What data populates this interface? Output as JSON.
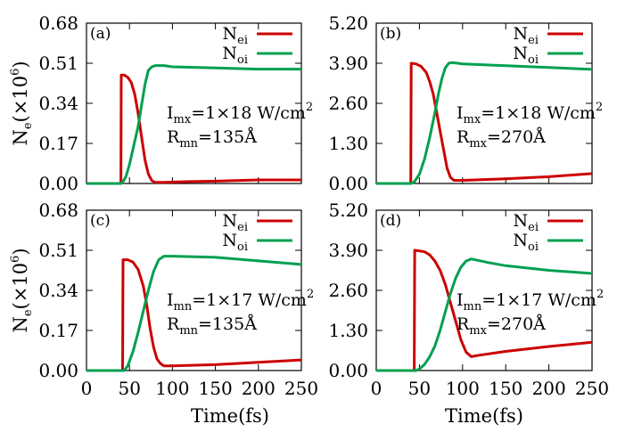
{
  "colors": {
    "ei": "#cc0000",
    "oi": "#00a050",
    "axis": "#000000"
  },
  "xlabel": "Time(fs)",
  "ylabel": {
    "main": "N",
    "sub": "e",
    "rest": "(×10",
    "sup": "6",
    "close": ")"
  },
  "chart_data": [
    {
      "type": "line",
      "panel": "(a)",
      "annotation": [
        {
          "main": "I",
          "sub": "mx",
          "rest": "=1×18 W/cm",
          "sup": "2"
        },
        {
          "main": "R",
          "sub": "mn",
          "rest": "=135Å",
          "sup": ""
        }
      ],
      "xlim": [
        0,
        250
      ],
      "ylim": [
        0,
        0.68
      ],
      "xticks": [
        0,
        50,
        100,
        150,
        200,
        250
      ],
      "yticks": [
        "0.00",
        "0.17",
        "0.34",
        "0.51",
        "0.68"
      ],
      "legend_position": "top-right",
      "grid": false,
      "series": [
        {
          "name": "N_ei",
          "label_main": "N",
          "label_sub": "ei",
          "color": "#cc0000",
          "x": [
            0,
            40,
            40.5,
            44,
            48,
            52,
            56,
            60,
            64,
            68,
            72,
            76,
            80,
            90,
            100,
            120,
            150,
            200,
            250
          ],
          "y": [
            0,
            0,
            0.46,
            0.46,
            0.45,
            0.43,
            0.38,
            0.3,
            0.2,
            0.1,
            0.04,
            0.012,
            0.005,
            0.005,
            0.006,
            0.008,
            0.01,
            0.015,
            0.015
          ]
        },
        {
          "name": "N_oi",
          "label_main": "N",
          "label_sub": "oi",
          "color": "#00a050",
          "x": [
            0,
            40,
            42,
            46,
            50,
            55,
            60,
            64,
            68,
            72,
            76,
            80,
            90,
            100,
            150,
            200,
            250
          ],
          "y": [
            0,
            0,
            0.005,
            0.03,
            0.08,
            0.16,
            0.24,
            0.33,
            0.42,
            0.48,
            0.495,
            0.5,
            0.5,
            0.495,
            0.49,
            0.485,
            0.485
          ]
        }
      ]
    },
    {
      "type": "line",
      "panel": "(b)",
      "annotation": [
        {
          "main": "I",
          "sub": "mx",
          "rest": "=1×18 W/cm",
          "sup": "2"
        },
        {
          "main": "R",
          "sub": "mx",
          "rest": "=270Å",
          "sup": ""
        }
      ],
      "xlim": [
        0,
        250
      ],
      "ylim": [
        0,
        5.2
      ],
      "xticks": [
        0,
        50,
        100,
        150,
        200,
        250
      ],
      "yticks": [
        "0.00",
        "1.30",
        "2.60",
        "3.90",
        "5.20"
      ],
      "legend_position": "top-right",
      "grid": false,
      "series": [
        {
          "name": "N_ei",
          "label_main": "N",
          "label_sub": "ei",
          "color": "#cc0000",
          "x": [
            0,
            40,
            40.5,
            46,
            52,
            58,
            62,
            66,
            70,
            74,
            78,
            82,
            86,
            90,
            100,
            150,
            200,
            250
          ],
          "y": [
            0,
            0,
            3.9,
            3.88,
            3.8,
            3.6,
            3.3,
            2.9,
            2.3,
            1.7,
            1.1,
            0.5,
            0.2,
            0.1,
            0.1,
            0.15,
            0.22,
            0.32
          ]
        },
        {
          "name": "N_oi",
          "label_main": "N",
          "label_sub": "oi",
          "color": "#00a050",
          "x": [
            0,
            40,
            44,
            50,
            56,
            62,
            68,
            72,
            76,
            80,
            84,
            88,
            100,
            150,
            200,
            250
          ],
          "y": [
            0,
            0,
            0.05,
            0.3,
            0.8,
            1.5,
            2.3,
            2.9,
            3.4,
            3.75,
            3.9,
            3.92,
            3.88,
            3.82,
            3.76,
            3.7
          ]
        }
      ]
    },
    {
      "type": "line",
      "panel": "(c)",
      "annotation": [
        {
          "main": "I",
          "sub": "mn",
          "rest": "=1×17 W/cm",
          "sup": "2"
        },
        {
          "main": "R",
          "sub": "mn",
          "rest": "=135Å",
          "sup": ""
        }
      ],
      "xlim": [
        0,
        250
      ],
      "ylim": [
        0,
        0.68
      ],
      "xticks": [
        0,
        50,
        100,
        150,
        200,
        250
      ],
      "yticks": [
        "0.00",
        "0.17",
        "0.34",
        "0.51",
        "0.68"
      ],
      "legend_position": "top-right",
      "grid": false,
      "series": [
        {
          "name": "N_ei",
          "label_main": "N",
          "label_sub": "ei",
          "color": "#cc0000",
          "x": [
            0,
            42,
            42.5,
            48,
            54,
            60,
            66,
            70,
            74,
            78,
            82,
            86,
            90,
            100,
            150,
            200,
            250
          ],
          "y": [
            0,
            0,
            0.47,
            0.47,
            0.46,
            0.43,
            0.36,
            0.28,
            0.18,
            0.1,
            0.05,
            0.03,
            0.02,
            0.02,
            0.025,
            0.035,
            0.045
          ]
        },
        {
          "name": "N_oi",
          "label_main": "N",
          "label_sub": "oi",
          "color": "#00a050",
          "x": [
            0,
            44,
            48,
            54,
            60,
            66,
            72,
            78,
            84,
            90,
            100,
            150,
            200,
            250
          ],
          "y": [
            0,
            0,
            0.02,
            0.08,
            0.16,
            0.25,
            0.34,
            0.42,
            0.47,
            0.485,
            0.485,
            0.48,
            0.465,
            0.45
          ]
        }
      ]
    },
    {
      "type": "line",
      "panel": "(d)",
      "annotation": [
        {
          "main": "I",
          "sub": "mn",
          "rest": "=1×17 W/cm",
          "sup": "2"
        },
        {
          "main": "R",
          "sub": "mx",
          "rest": "=270Å",
          "sup": ""
        }
      ],
      "xlim": [
        0,
        250
      ],
      "ylim": [
        0,
        5.2
      ],
      "xticks": [
        0,
        50,
        100,
        150,
        200,
        250
      ],
      "yticks": [
        "0.00",
        "1.30",
        "2.60",
        "3.90",
        "5.20"
      ],
      "legend_position": "top-right",
      "grid": false,
      "series": [
        {
          "name": "N_ei",
          "label_main": "N",
          "label_sub": "ei",
          "color": "#cc0000",
          "x": [
            0,
            44,
            44.5,
            50,
            56,
            62,
            68,
            74,
            80,
            86,
            92,
            98,
            104,
            110,
            120,
            150,
            200,
            250
          ],
          "y": [
            0,
            0,
            3.9,
            3.88,
            3.85,
            3.75,
            3.55,
            3.25,
            2.8,
            2.2,
            1.6,
            1.0,
            0.6,
            0.45,
            0.5,
            0.62,
            0.78,
            0.92
          ]
        },
        {
          "name": "N_oi",
          "label_main": "N",
          "label_sub": "oi",
          "color": "#00a050",
          "x": [
            0,
            46,
            50,
            56,
            62,
            68,
            74,
            80,
            86,
            92,
            98,
            104,
            110,
            130,
            150,
            200,
            250
          ],
          "y": [
            0,
            0,
            0.05,
            0.2,
            0.45,
            0.8,
            1.3,
            1.9,
            2.5,
            3.0,
            3.35,
            3.55,
            3.62,
            3.5,
            3.4,
            3.25,
            3.15
          ]
        }
      ]
    }
  ]
}
